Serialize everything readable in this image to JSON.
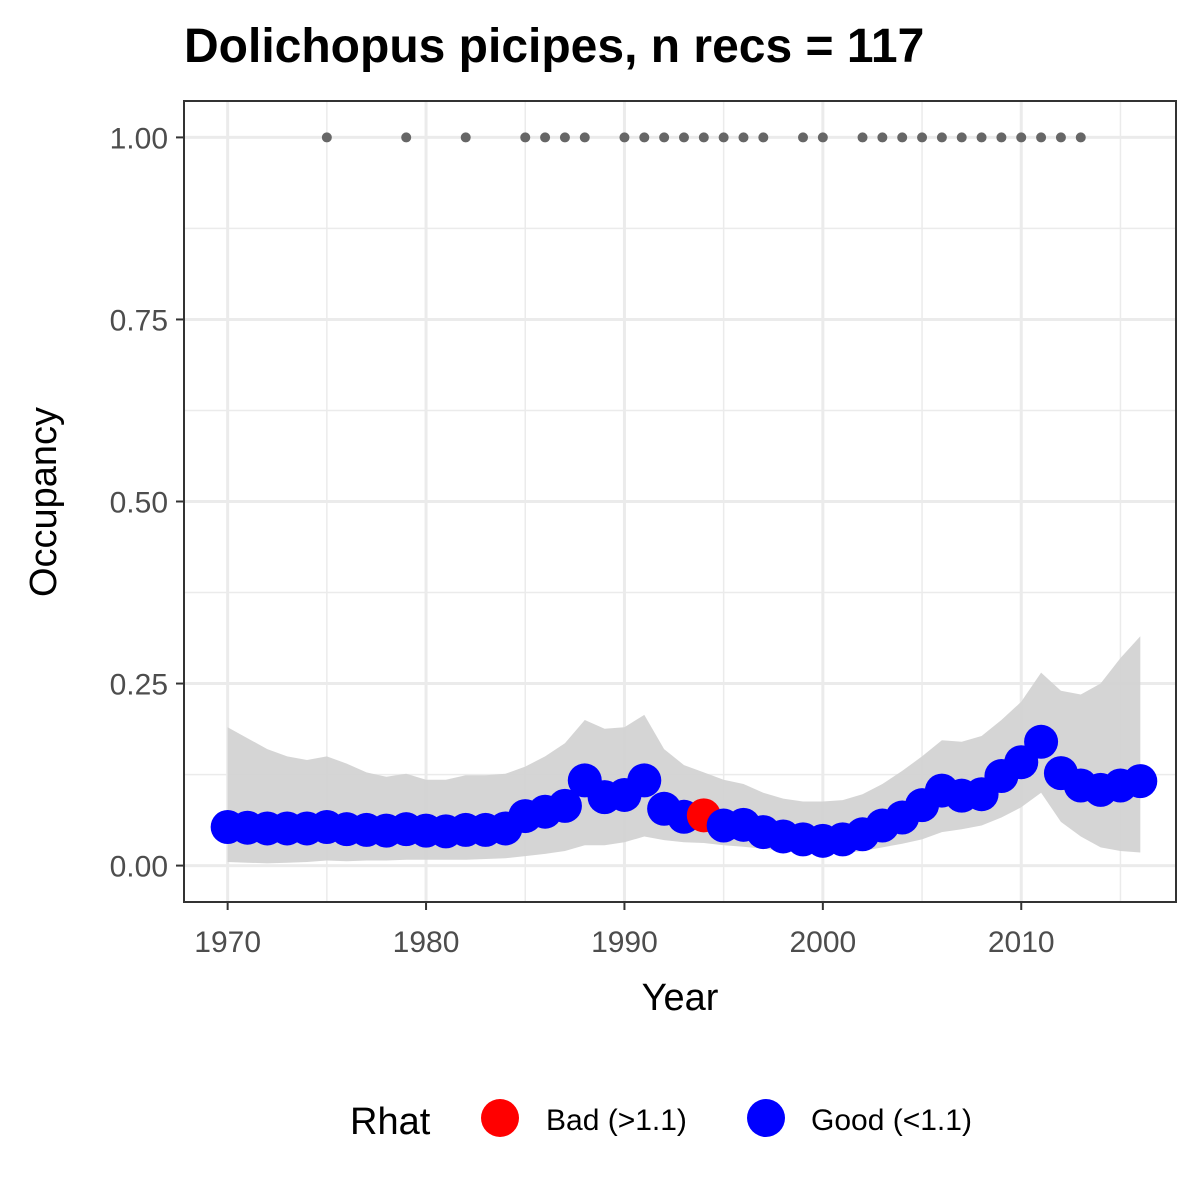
{
  "chart_data": {
    "type": "scatter",
    "title": "Dolichopus picipes, n recs = 117",
    "xlabel": "Year",
    "ylabel": "Occupancy",
    "xlim": [
      1967.8,
      2017.8
    ],
    "ylim": [
      -0.05,
      1.05
    ],
    "x_ticks": [
      1970,
      1980,
      1990,
      2000,
      2010
    ],
    "y_ticks": [
      0.0,
      0.25,
      0.5,
      0.75,
      1.0
    ],
    "y_tick_labels": [
      "0.00",
      "0.25",
      "0.50",
      "0.75",
      "1.00"
    ],
    "grid": true,
    "colors": {
      "bad": "#ff0000",
      "good": "#0000ff",
      "band": "#d3d3d3",
      "records": "#666666"
    },
    "years": [
      1970,
      1971,
      1972,
      1973,
      1974,
      1975,
      1976,
      1977,
      1978,
      1979,
      1980,
      1981,
      1982,
      1983,
      1984,
      1985,
      1986,
      1987,
      1988,
      1989,
      1990,
      1991,
      1992,
      1993,
      1994,
      1995,
      1996,
      1997,
      1998,
      1999,
      2000,
      2001,
      2002,
      2003,
      2004,
      2005,
      2006,
      2007,
      2008,
      2009,
      2010,
      2011,
      2012,
      2013,
      2014,
      2015,
      2016
    ],
    "occupancy": [
      0.053,
      0.052,
      0.051,
      0.051,
      0.051,
      0.053,
      0.05,
      0.049,
      0.048,
      0.05,
      0.048,
      0.047,
      0.049,
      0.049,
      0.051,
      0.068,
      0.074,
      0.082,
      0.117,
      0.094,
      0.097,
      0.117,
      0.078,
      0.067,
      0.069,
      0.055,
      0.056,
      0.046,
      0.04,
      0.036,
      0.034,
      0.036,
      0.043,
      0.055,
      0.066,
      0.083,
      0.103,
      0.096,
      0.098,
      0.123,
      0.142,
      0.17,
      0.127,
      0.11,
      0.104,
      0.11,
      0.116
    ],
    "lower": [
      0.005,
      0.004,
      0.003,
      0.004,
      0.005,
      0.007,
      0.006,
      0.007,
      0.007,
      0.008,
      0.008,
      0.008,
      0.008,
      0.009,
      0.01,
      0.013,
      0.016,
      0.02,
      0.028,
      0.028,
      0.032,
      0.04,
      0.035,
      0.032,
      0.031,
      0.028,
      0.026,
      0.023,
      0.02,
      0.018,
      0.017,
      0.017,
      0.02,
      0.025,
      0.03,
      0.036,
      0.046,
      0.05,
      0.055,
      0.066,
      0.08,
      0.1,
      0.06,
      0.04,
      0.025,
      0.02,
      0.018
    ],
    "upper": [
      0.19,
      0.175,
      0.16,
      0.15,
      0.145,
      0.15,
      0.14,
      0.128,
      0.122,
      0.126,
      0.118,
      0.118,
      0.124,
      0.124,
      0.126,
      0.136,
      0.15,
      0.168,
      0.2,
      0.188,
      0.19,
      0.207,
      0.16,
      0.138,
      0.128,
      0.118,
      0.112,
      0.1,
      0.092,
      0.088,
      0.088,
      0.09,
      0.098,
      0.112,
      0.13,
      0.15,
      0.172,
      0.17,
      0.178,
      0.2,
      0.225,
      0.265,
      0.24,
      0.235,
      0.25,
      0.285,
      0.315
    ],
    "rhat": [
      "good",
      "good",
      "good",
      "good",
      "good",
      "good",
      "good",
      "good",
      "good",
      "good",
      "good",
      "good",
      "good",
      "good",
      "good",
      "good",
      "good",
      "good",
      "good",
      "good",
      "good",
      "good",
      "good",
      "good",
      "bad",
      "good",
      "good",
      "good",
      "good",
      "good",
      "good",
      "good",
      "good",
      "good",
      "good",
      "good",
      "good",
      "good",
      "good",
      "good",
      "good",
      "good",
      "good",
      "good",
      "good",
      "good",
      "good"
    ],
    "record_years": [
      1975,
      1979,
      1982,
      1985,
      1986,
      1987,
      1988,
      1990,
      1991,
      1992,
      1993,
      1994,
      1995,
      1996,
      1997,
      1999,
      2000,
      2002,
      2003,
      2004,
      2005,
      2006,
      2007,
      2008,
      2009,
      2010,
      2011,
      2012,
      2013
    ],
    "record_value": 1.0,
    "legend": {
      "position": "bottom",
      "title": "Rhat",
      "items": [
        {
          "key": "bad",
          "label": "Bad (>1.1)"
        },
        {
          "key": "good",
          "label": "Good (<1.1)"
        }
      ]
    }
  }
}
